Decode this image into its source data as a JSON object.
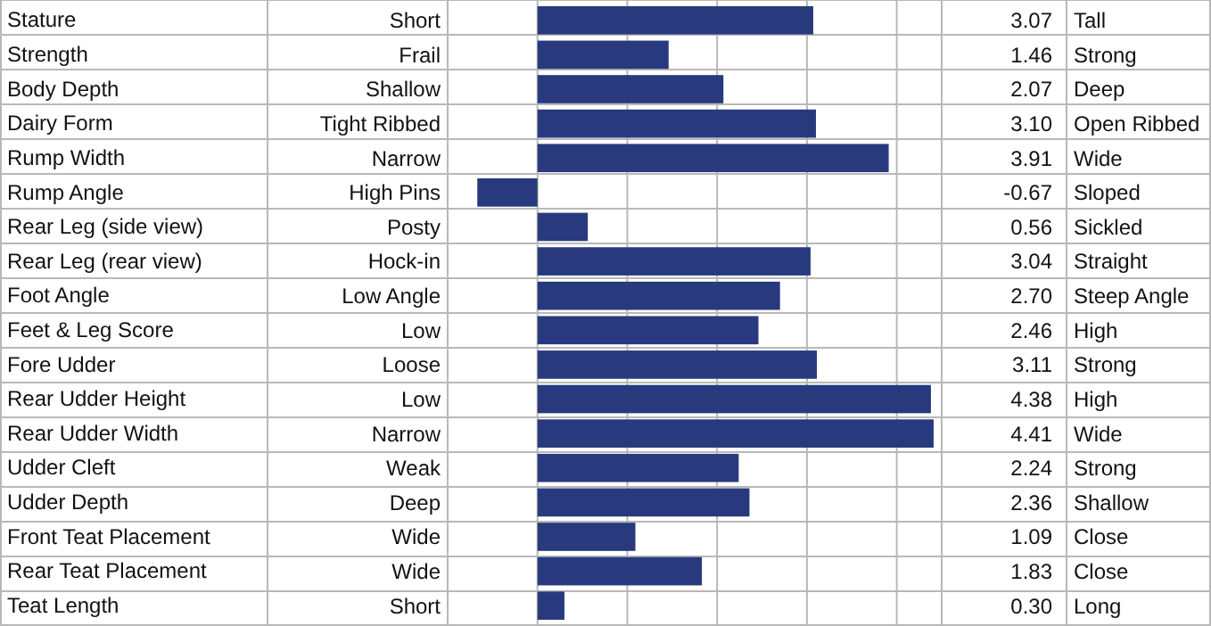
{
  "chart_data": {
    "type": "bar",
    "orientation": "horizontal",
    "categories": [
      "Stature",
      "Strength",
      "Body Depth",
      "Dairy Form",
      "Rump Width",
      "Rump Angle",
      "Rear Leg (side view)",
      "Rear Leg (rear view)",
      "Foot Angle",
      "Feet & Leg Score",
      "Fore Udder",
      "Rear Udder Height",
      "Rear Udder Width",
      "Udder Cleft",
      "Udder Depth",
      "Front Teat Placement",
      "Rear Teat Placement",
      "Teat Length"
    ],
    "values": [
      3.07,
      1.46,
      2.07,
      3.1,
      3.91,
      -0.67,
      0.56,
      3.04,
      2.7,
      2.46,
      3.11,
      4.38,
      4.41,
      2.24,
      2.36,
      1.09,
      1.83,
      0.3
    ],
    "value_labels": [
      "3.07",
      "1.46",
      "2.07",
      "3.10",
      "3.91",
      "-0.67",
      "0.56",
      "3.04",
      "2.70",
      "2.46",
      "3.11",
      "4.38",
      "4.41",
      "2.24",
      "2.36",
      "1.09",
      "1.83",
      "0.30"
    ],
    "color": "#283a7d",
    "xlim": [
      -1,
      4.5
    ],
    "xticks": [
      {
        "value": -1,
        "label": null
      },
      {
        "value": 0,
        "label": null
      },
      {
        "value": 1,
        "label": null
      },
      {
        "value": 2,
        "label": null
      },
      {
        "value": 3,
        "label": null
      },
      {
        "value": 4,
        "label": null
      }
    ],
    "tick_labels": "y",
    "grid": "x",
    "annotations": [
      "Short",
      "Frail",
      "Shallow",
      "Tight Ribbed",
      "Narrow",
      "High Pins",
      "Posty",
      "Hock-in",
      "Low Angle",
      "Low",
      "Loose",
      "Low",
      "Narrow",
      "Weak",
      "Deep",
      "Wide",
      "Wide",
      "Short",
      "Tall",
      "Strong",
      "Deep",
      "Open Ribbed",
      "Wide",
      "Sloped",
      "Sickled",
      "Straight",
      "Steep Angle",
      "High",
      "Strong",
      "High",
      "Wide",
      "Strong",
      "Shallow",
      "Close",
      "Close",
      "Long"
    ]
  }
}
